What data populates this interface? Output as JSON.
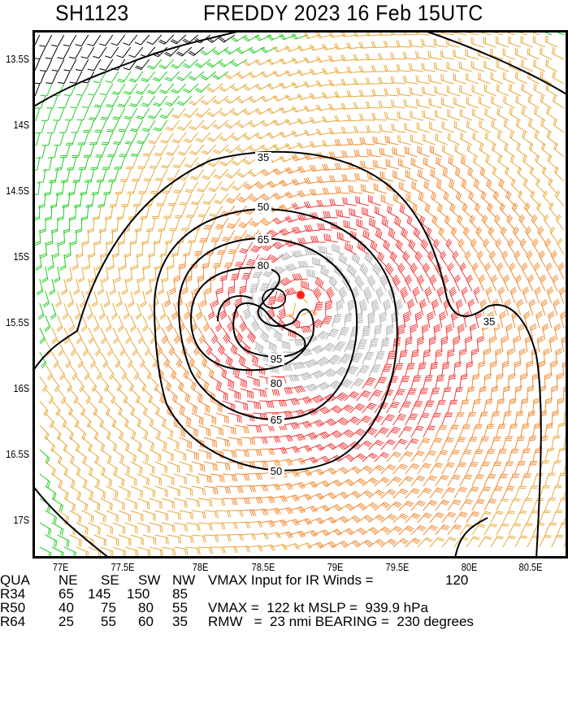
{
  "header": {
    "storm_id": "SH1123",
    "title": "FREDDY 2023 16 Feb 15UTC"
  },
  "chart_data": {
    "type": "heatmap",
    "title": "FREDDY 2023 16 Feb 15UTC",
    "subtitle": "SH1123",
    "description": "Wind barb field around tropical cyclone with wind speed contours (kt)",
    "x_ticks": [
      "77E",
      "77.5E",
      "78E",
      "78.5E",
      "79E",
      "79.5E",
      "80E",
      "80.5E"
    ],
    "y_ticks": [
      "13.5S",
      "14S",
      "14.5S",
      "15S",
      "15.5S",
      "16S",
      "16.5S",
      "17S"
    ],
    "xlim": [
      76.85,
      80.85
    ],
    "ylim": [
      -17.05,
      -13.1
    ],
    "contour_levels": [
      35,
      50,
      65,
      80,
      95
    ],
    "contour_labels": [
      "35",
      "50",
      "65",
      "80",
      "95",
      "80",
      "65",
      "50",
      "35"
    ],
    "color_bands": [
      {
        "range": "<35 kt",
        "color": "#22cc22"
      },
      {
        "range": "35-50 kt",
        "color": "#e8a838"
      },
      {
        "range": "50-65 kt",
        "color": "#f08a30"
      },
      {
        "range": "65-95 kt",
        "color": "#f03a3a"
      },
      {
        "range": ">95 kt",
        "color": "#b0b0b0"
      },
      {
        "range": "outer/edge",
        "color": "#000000"
      }
    ],
    "center_marker": {
      "lon": 78.77,
      "lat": -15.05,
      "color": "#ff2020"
    },
    "grid": false
  },
  "footer": {
    "header_row": [
      "QUA",
      "NE",
      "SE",
      "SW",
      "NW"
    ],
    "vmax_input_label": "VMAX Input for IR Winds =",
    "vmax_input_value": "120",
    "rows": [
      {
        "label": "R34",
        "values": [
          "65",
          "145",
          "150",
          "85"
        ]
      },
      {
        "label": "R50",
        "values": [
          "40",
          "75",
          "80",
          "55"
        ]
      },
      {
        "label": "R64",
        "values": [
          "25",
          "55",
          "60",
          "35"
        ]
      }
    ],
    "vmax_text": "VMAX =  122 kt MSLP =  939.9 hPa",
    "rmw_text": "RMW   =  23 nmi BEARING =  230 degrees"
  }
}
